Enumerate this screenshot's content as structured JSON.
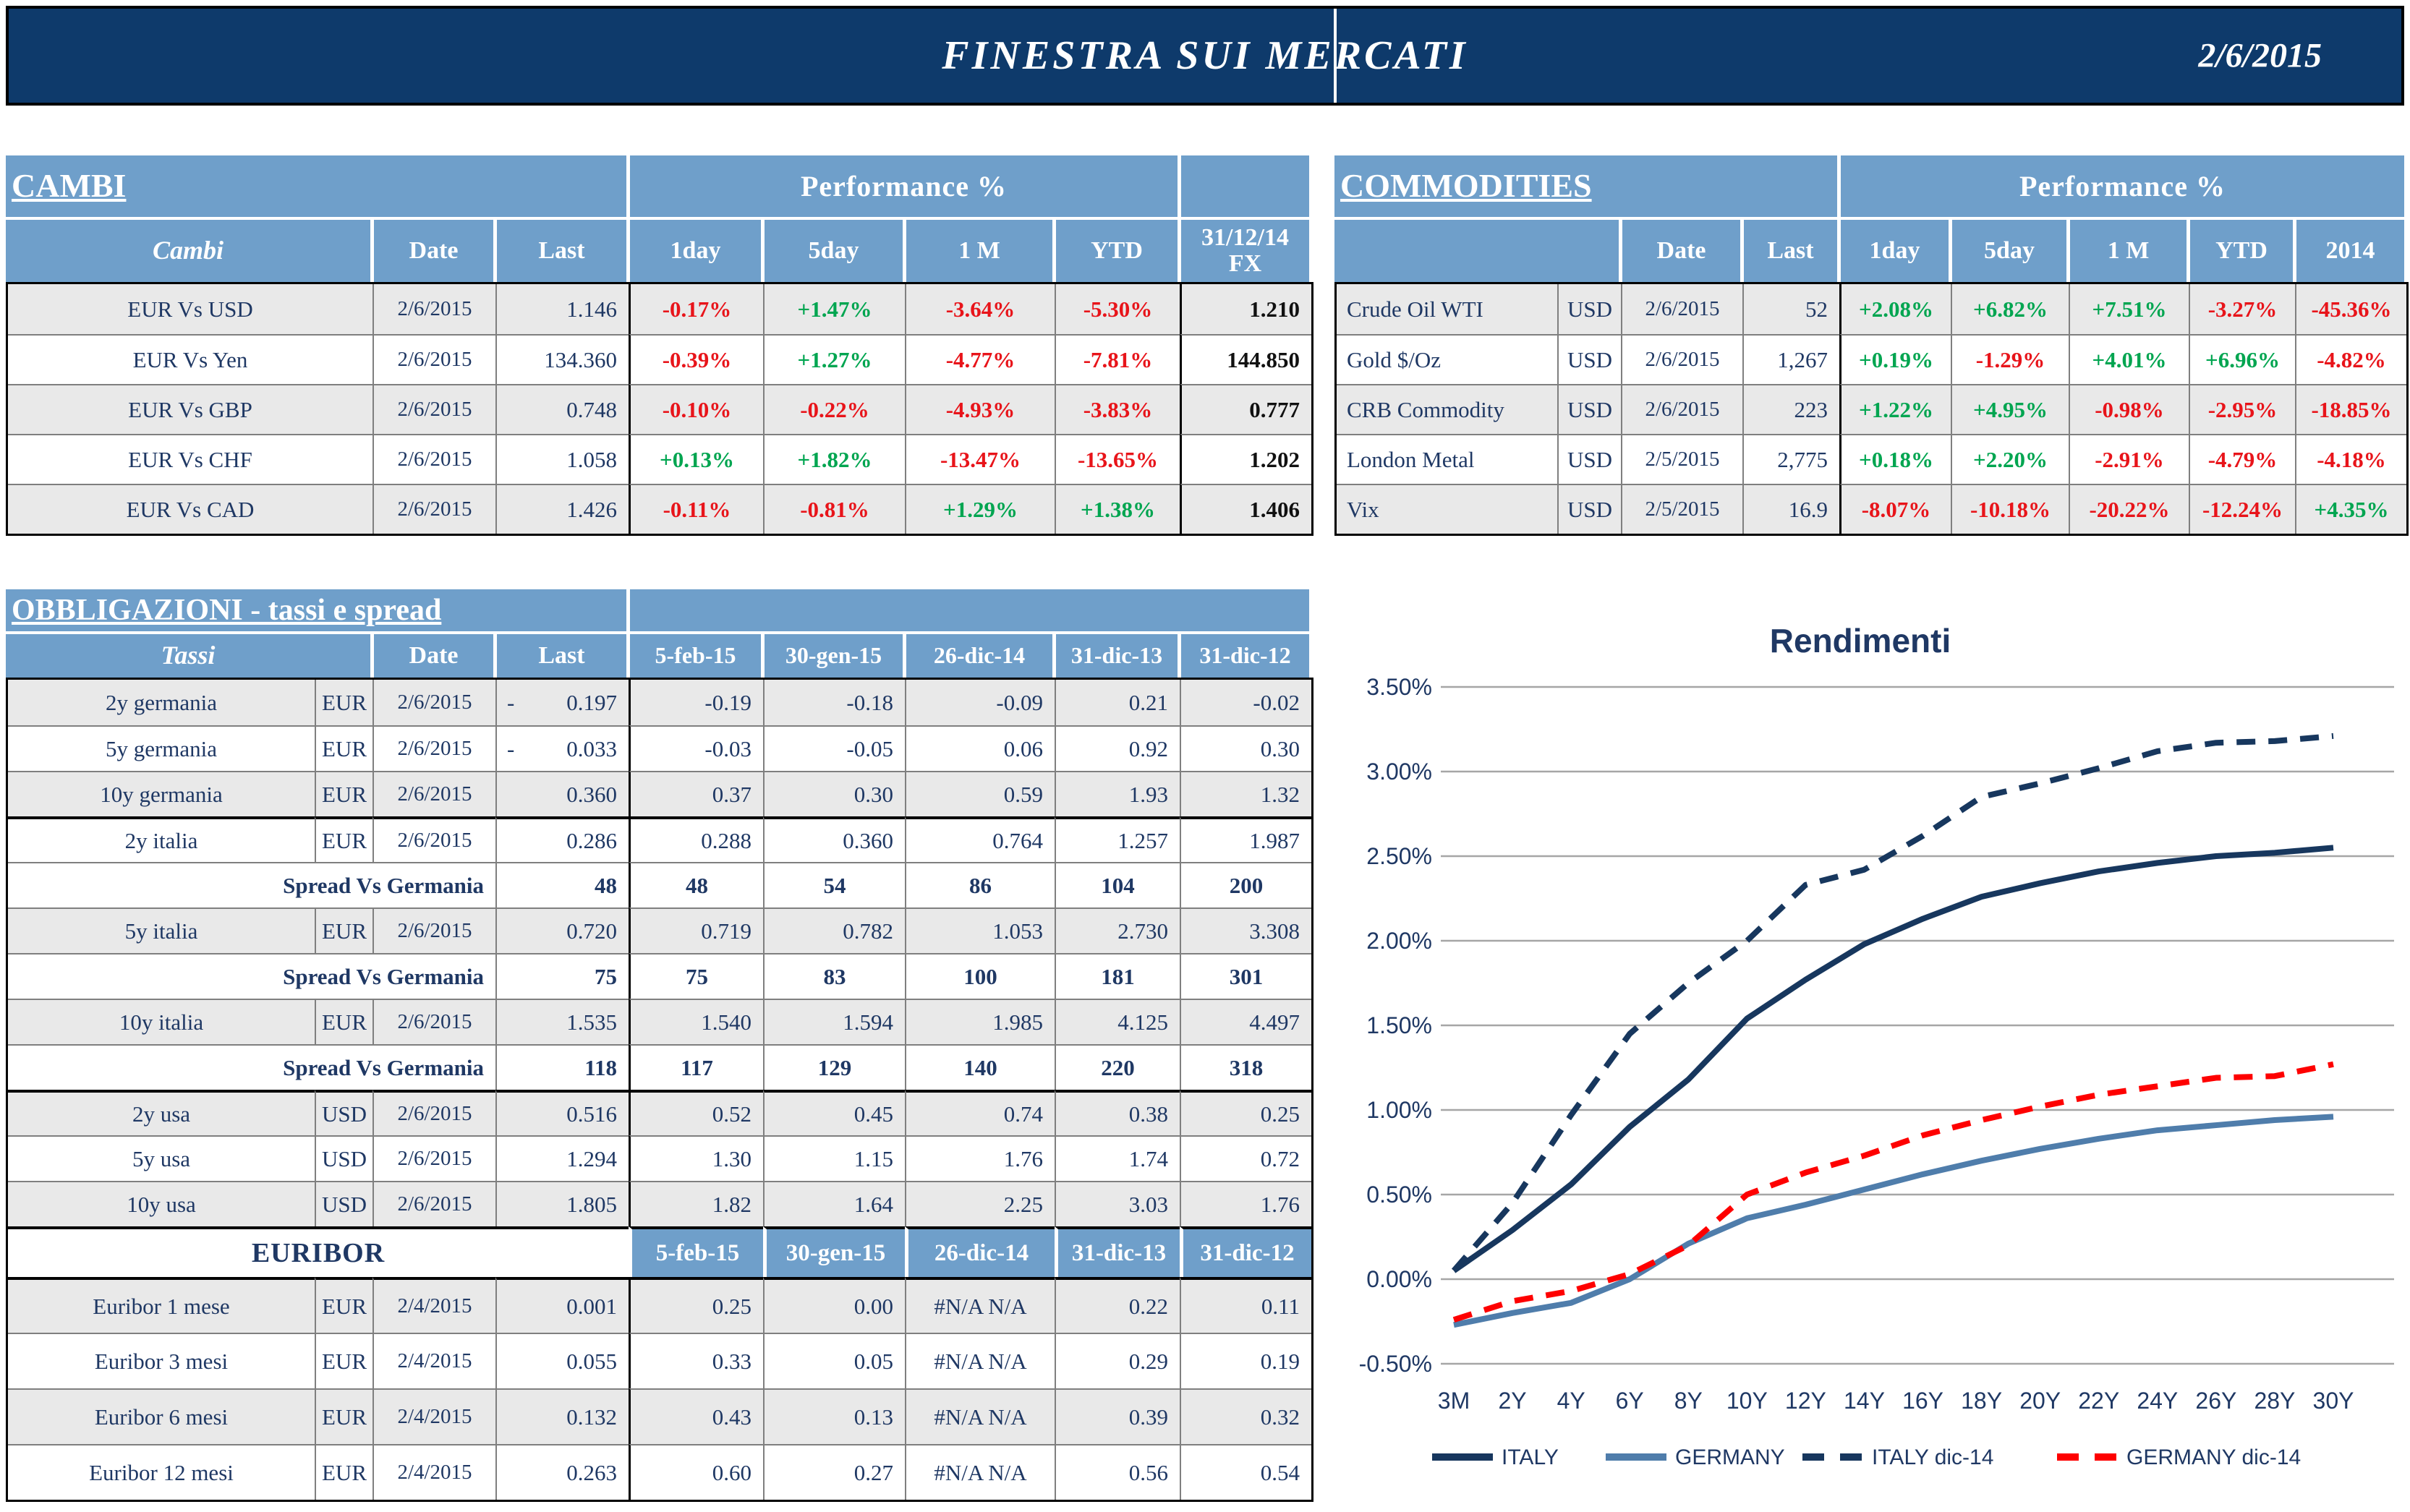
{
  "header": {
    "title": "FINESTRA SUI MERCATI",
    "date": "2/6/2015"
  },
  "colors": {
    "top_bar": "#0e3a6b",
    "table_header_blue": "#6f9fca",
    "text_navy": "#1f3864",
    "negative_red": "#e8141a",
    "positive_green": "#00a550",
    "row_gray": "#e9e9e9",
    "grid_gray": "#a6a6a6",
    "italy_line": "#17375e",
    "germany_line": "#4f7dab",
    "germany_dec_line": "#fe0000"
  },
  "cambi": {
    "section_title": "CAMBI",
    "perf_title": "Performance  %",
    "columns": {
      "name": "Cambi",
      "date": "Date",
      "last": "Last",
      "perf": [
        "1day",
        "5day",
        "1 M",
        "YTD"
      ],
      "fx": "31/12/14\nFX"
    },
    "rows": [
      {
        "name": "EUR Vs USD",
        "date": "2/6/2015",
        "last": "1.146",
        "perf": [
          "-0.17%",
          "+1.47%",
          "-3.64%",
          "-5.30%"
        ],
        "fx": "1.210"
      },
      {
        "name": "EUR Vs Yen",
        "date": "2/6/2015",
        "last": "134.360",
        "perf": [
          "-0.39%",
          "+1.27%",
          "-4.77%",
          "-7.81%"
        ],
        "fx": "144.850"
      },
      {
        "name": "EUR Vs GBP",
        "date": "2/6/2015",
        "last": "0.748",
        "perf": [
          "-0.10%",
          "-0.22%",
          "-4.93%",
          "-3.83%"
        ],
        "fx": "0.777"
      },
      {
        "name": "EUR Vs CHF",
        "date": "2/6/2015",
        "last": "1.058",
        "perf": [
          "+0.13%",
          "+1.82%",
          "-13.47%",
          "-13.65%"
        ],
        "fx": "1.202"
      },
      {
        "name": "EUR Vs CAD",
        "date": "2/6/2015",
        "last": "1.426",
        "perf": [
          "-0.11%",
          "-0.81%",
          "+1.29%",
          "+1.38%"
        ],
        "fx": "1.406"
      }
    ]
  },
  "commodities": {
    "section_title": "COMMODITIES",
    "perf_title": "Performance  %",
    "columns": {
      "date": "Date",
      "last": "Last",
      "perf": [
        "1day",
        "5day",
        "1 M",
        "YTD",
        "2014"
      ]
    },
    "rows": [
      {
        "name": "Crude Oil WTI",
        "curr": "USD",
        "date": "2/6/2015",
        "last": "52",
        "perf": [
          "+2.08%",
          "+6.82%",
          "+7.51%",
          "-3.27%",
          "-45.36%"
        ]
      },
      {
        "name": "Gold $/Oz",
        "curr": "USD",
        "date": "2/6/2015",
        "last": "1,267",
        "perf": [
          "+0.19%",
          "-1.29%",
          "+4.01%",
          "+6.96%",
          "-4.82%"
        ]
      },
      {
        "name": "CRB Commodity",
        "curr": "USD",
        "date": "2/6/2015",
        "last": "223",
        "perf": [
          "+1.22%",
          "+4.95%",
          "-0.98%",
          "-2.95%",
          "-18.85%"
        ]
      },
      {
        "name": "London Metal",
        "curr": "USD",
        "date": "2/5/2015",
        "last": "2,775",
        "perf": [
          "+0.18%",
          "+2.20%",
          "-2.91%",
          "-4.79%",
          "-4.18%"
        ]
      },
      {
        "name": "Vix",
        "curr": "USD",
        "date": "2/5/2015",
        "last": "16.9",
        "perf": [
          "-8.07%",
          "-10.18%",
          "-20.22%",
          "-12.24%",
          "+4.35%"
        ]
      }
    ]
  },
  "obbligazioni": {
    "section_title": "OBBLIGAZIONI - tassi e spread",
    "columns": {
      "name": "Tassi",
      "date": "Date",
      "last": "Last",
      "hist": [
        "5-feb-15",
        "30-gen-15",
        "26-dic-14",
        "31-dic-13",
        "31-dic-12"
      ]
    },
    "rows": [
      {
        "type": "data",
        "name": "2y germania",
        "curr": "EUR",
        "date": "2/6/2015",
        "last": "0.197",
        "neg": true,
        "hist": [
          "-0.19",
          "-0.18",
          "-0.09",
          "0.21",
          "-0.02"
        ],
        "shade": true
      },
      {
        "type": "data",
        "name": "5y germania",
        "curr": "EUR",
        "date": "2/6/2015",
        "last": "0.033",
        "neg": true,
        "hist": [
          "-0.03",
          "-0.05",
          "0.06",
          "0.92",
          "0.30"
        ],
        "shade": false
      },
      {
        "type": "data",
        "name": "10y germania",
        "curr": "EUR",
        "date": "2/6/2015",
        "last": "0.360",
        "hist": [
          "0.37",
          "0.30",
          "0.59",
          "1.93",
          "1.32"
        ],
        "shade": true
      },
      {
        "type": "data",
        "name": "2y italia",
        "curr": "EUR",
        "date": "2/6/2015",
        "last": "0.286",
        "hist": [
          "0.288",
          "0.360",
          "0.764",
          "1.257",
          "1.987"
        ],
        "shade": false,
        "thick_top": true
      },
      {
        "type": "spread",
        "name": "Spread Vs Germania",
        "last": "48",
        "hist": [
          "48",
          "54",
          "86",
          "104",
          "200"
        ]
      },
      {
        "type": "data",
        "name": "5y italia",
        "curr": "EUR",
        "date": "2/6/2015",
        "last": "0.720",
        "hist": [
          "0.719",
          "0.782",
          "1.053",
          "2.730",
          "3.308"
        ],
        "shade": true
      },
      {
        "type": "spread",
        "name": "Spread Vs Germania",
        "last": "75",
        "hist": [
          "75",
          "83",
          "100",
          "181",
          "301"
        ]
      },
      {
        "type": "data",
        "name": "10y italia",
        "curr": "EUR",
        "date": "2/6/2015",
        "last": "1.535",
        "hist": [
          "1.540",
          "1.594",
          "1.985",
          "4.125",
          "4.497"
        ],
        "shade": true
      },
      {
        "type": "spread",
        "name": "Spread Vs Germania",
        "last": "118",
        "hist": [
          "117",
          "129",
          "140",
          "220",
          "318"
        ]
      },
      {
        "type": "data",
        "name": "2y usa",
        "curr": "USD",
        "date": "2/6/2015",
        "last": "0.516",
        "hist": [
          "0.52",
          "0.45",
          "0.74",
          "0.38",
          "0.25"
        ],
        "shade": true,
        "thick_top": true
      },
      {
        "type": "data",
        "name": "5y usa",
        "curr": "USD",
        "date": "2/6/2015",
        "last": "1.294",
        "hist": [
          "1.30",
          "1.15",
          "1.76",
          "1.74",
          "0.72"
        ],
        "shade": false
      },
      {
        "type": "data",
        "name": "10y usa",
        "curr": "USD",
        "date": "2/6/2015",
        "last": "1.805",
        "hist": [
          "1.82",
          "1.64",
          "2.25",
          "3.03",
          "1.76"
        ],
        "shade": true
      }
    ],
    "euribor": {
      "title": "EURIBOR",
      "columns": [
        "5-feb-15",
        "30-gen-15",
        "26-dic-14",
        "31-dic-13",
        "31-dic-12"
      ],
      "rows": [
        {
          "name": "Euribor 1 mese",
          "curr": "EUR",
          "date": "2/4/2015",
          "last": "0.001",
          "hist": [
            "0.25",
            "0.00",
            "#N/A N/A",
            "0.22",
            "0.11"
          ],
          "shade": true
        },
        {
          "name": "Euribor 3 mesi",
          "curr": "EUR",
          "date": "2/4/2015",
          "last": "0.055",
          "hist": [
            "0.33",
            "0.05",
            "#N/A N/A",
            "0.29",
            "0.19"
          ],
          "shade": false
        },
        {
          "name": "Euribor 6 mesi",
          "curr": "EUR",
          "date": "2/4/2015",
          "last": "0.132",
          "hist": [
            "0.43",
            "0.13",
            "#N/A N/A",
            "0.39",
            "0.32"
          ],
          "shade": true
        },
        {
          "name": "Euribor 12 mesi",
          "curr": "EUR",
          "date": "2/4/2015",
          "last": "0.263",
          "hist": [
            "0.60",
            "0.27",
            "#N/A N/A",
            "0.56",
            "0.54"
          ],
          "shade": false
        }
      ]
    }
  },
  "chart_data": {
    "type": "line",
    "title": "Rendimenti",
    "x_labels": [
      "3M",
      "2Y",
      "4Y",
      "6Y",
      "8Y",
      "10Y",
      "12Y",
      "14Y",
      "16Y",
      "18Y",
      "20Y",
      "22Y",
      "24Y",
      "26Y",
      "28Y",
      "30Y"
    ],
    "ylim": [
      -0.5,
      3.5
    ],
    "ytick_step": 0.5,
    "grid": true,
    "legend_position": "bottom",
    "series": [
      {
        "name": "ITALY",
        "style": "solid",
        "color": "#17375e",
        "values": [
          0.05,
          0.29,
          0.56,
          0.9,
          1.18,
          1.54,
          1.77,
          1.98,
          2.13,
          2.26,
          2.34,
          2.41,
          2.46,
          2.5,
          2.52,
          2.55
        ]
      },
      {
        "name": "GERMANY",
        "style": "solid",
        "color": "#4f7dab",
        "values": [
          -0.27,
          -0.2,
          -0.14,
          0.0,
          0.21,
          0.36,
          0.44,
          0.53,
          0.62,
          0.7,
          0.77,
          0.83,
          0.88,
          0.91,
          0.94,
          0.96
        ]
      },
      {
        "name": "ITALY dic-14",
        "style": "dashed",
        "color": "#17375e",
        "values": [
          0.05,
          0.45,
          0.97,
          1.45,
          1.75,
          2.0,
          2.33,
          2.42,
          2.62,
          2.85,
          2.93,
          3.02,
          3.12,
          3.17,
          3.18,
          3.21
        ]
      },
      {
        "name": "GERMANY dic-14",
        "style": "dashed",
        "color": "#fe0000",
        "values": [
          -0.24,
          -0.13,
          -0.07,
          0.03,
          0.2,
          0.5,
          0.63,
          0.73,
          0.85,
          0.94,
          1.02,
          1.09,
          1.14,
          1.19,
          1.2,
          1.27
        ]
      }
    ]
  }
}
